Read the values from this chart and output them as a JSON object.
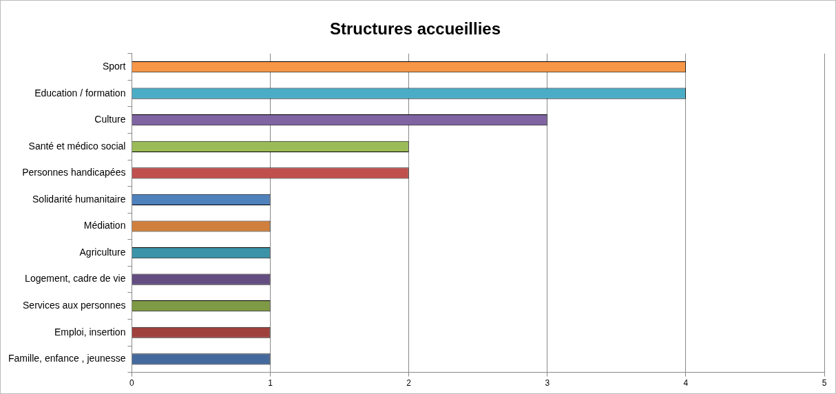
{
  "chart_data": {
    "type": "bar",
    "orientation": "horizontal",
    "title": "Structures accueillies",
    "categories": [
      "Sport",
      "Education / formation",
      "Culture",
      "Santé et médico social",
      "Personnes handicapées",
      "Solidarité humanitaire",
      "Médiation",
      "Agriculture",
      "Logement, cadre de vie",
      "Services aux personnes",
      "Emploi, insertion",
      "Famille, enfance , jeunesse"
    ],
    "values": [
      4,
      4,
      3,
      2,
      2,
      1,
      1,
      1,
      1,
      1,
      1,
      1
    ],
    "colors": [
      "#f79646",
      "#4bacc6",
      "#8064a2",
      "#9bbb59",
      "#c0504d",
      "#4f81bd",
      "#d0803c",
      "#3b93a8",
      "#634d81",
      "#7f9a45",
      "#a0403d",
      "#44699c"
    ],
    "xlim": [
      0,
      5
    ],
    "xticks": [
      0,
      1,
      2,
      3,
      4,
      5
    ],
    "grid": "x",
    "legend": false
  }
}
